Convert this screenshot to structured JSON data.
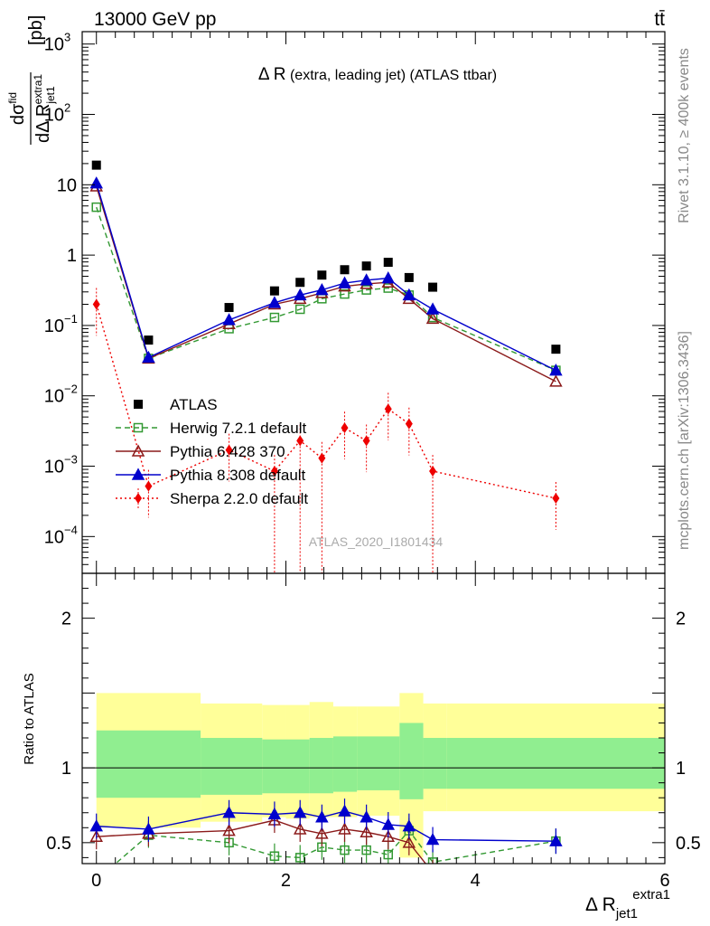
{
  "header": {
    "energy_label": "13000 GeV pp",
    "process_label": "tt̄"
  },
  "side_labels": {
    "rivet": "Rivet 3.1.10, ≥ 400k events",
    "mcplots": "mcplots.cern.ch [arXiv:1306.3436]"
  },
  "watermark": "ATLAS_2020_I1801434",
  "chart_data": [
    {
      "type": "line",
      "title": "Δ R (extra, leading jet) (ATLAS ttbar)",
      "title_main": "Δ R",
      "title_rest": " (extra, leading jet) (ATLAS ttbar)",
      "ylabel_num": "dσ",
      "ylabel_num_sup": "fid",
      "ylabel_den": "dΔ R",
      "ylabel_den_sub": "jet1",
      "ylabel_den_sup": "extra1",
      "ylabel_unit": "[pb]",
      "yscale": "log",
      "xlim": [
        -0.15,
        6.0
      ],
      "ylim": [
        3e-05,
        1500
      ],
      "y_ticks": [
        {
          "value": 0.0001,
          "base": "10",
          "exp": "−4"
        },
        {
          "value": 0.001,
          "base": "10",
          "exp": "−3"
        },
        {
          "value": 0.01,
          "base": "10",
          "exp": "−2"
        },
        {
          "value": 0.1,
          "base": "10",
          "exp": "−1"
        },
        {
          "value": 1,
          "base": "1",
          "exp": ""
        },
        {
          "value": 10,
          "base": "10",
          "exp": ""
        },
        {
          "value": 100,
          "base": "10",
          "exp": "2"
        },
        {
          "value": 1000,
          "base": "10",
          "exp": "3"
        }
      ],
      "legend_position": "lower-left",
      "series": [
        {
          "name": "ATLAS",
          "color": "#000000",
          "marker": "square-filled",
          "line": "none",
          "x": [
            0.0,
            0.55,
            1.4,
            1.88,
            2.15,
            2.38,
            2.62,
            2.85,
            3.08,
            3.3,
            3.55,
            4.85
          ],
          "y": [
            19.0,
            0.062,
            0.18,
            0.31,
            0.41,
            0.52,
            0.62,
            0.7,
            0.79,
            0.48,
            0.35,
            0.046
          ]
        },
        {
          "name": "Herwig 7.2.1 default",
          "color": "#339933",
          "marker": "square-open",
          "line": "dashed",
          "x": [
            0.0,
            0.55,
            1.4,
            1.88,
            2.15,
            2.38,
            2.62,
            2.85,
            3.08,
            3.3,
            3.55,
            4.85
          ],
          "y": [
            4.8,
            0.034,
            0.09,
            0.13,
            0.17,
            0.24,
            0.28,
            0.32,
            0.34,
            0.27,
            0.13,
            0.023
          ]
        },
        {
          "name": "Pythia 6.428 370",
          "color": "#8b1a1a",
          "marker": "triangle-open",
          "line": "solid",
          "x": [
            0.0,
            0.55,
            1.4,
            1.88,
            2.15,
            2.38,
            2.62,
            2.85,
            3.08,
            3.3,
            3.55,
            4.85
          ],
          "y": [
            9.5,
            0.034,
            0.105,
            0.2,
            0.24,
            0.29,
            0.36,
            0.39,
            0.41,
            0.24,
            0.125,
            0.016
          ]
        },
        {
          "name": "Pythia 8.308 default",
          "color": "#0000cc",
          "marker": "triangle-filled",
          "line": "solid",
          "x": [
            0.0,
            0.55,
            1.4,
            1.88,
            2.15,
            2.38,
            2.62,
            2.85,
            3.08,
            3.3,
            3.55,
            4.85
          ],
          "y": [
            10.5,
            0.035,
            0.12,
            0.21,
            0.27,
            0.32,
            0.4,
            0.44,
            0.47,
            0.27,
            0.17,
            0.023
          ]
        },
        {
          "name": "Sherpa 2.2.0 default",
          "color": "#ee0000",
          "marker": "diamond-filled",
          "line": "dotted",
          "x": [
            0.0,
            0.55,
            1.4,
            1.88,
            2.15,
            2.38,
            2.62,
            2.85,
            3.08,
            3.3,
            3.55,
            4.85
          ],
          "y": [
            0.2,
            0.00052,
            0.0017,
            0.00085,
            0.0023,
            0.0013,
            0.0035,
            0.0023,
            0.0065,
            0.004,
            0.00085,
            0.00035
          ]
        }
      ]
    },
    {
      "type": "line",
      "ylabel": "Ratio to ATLAS",
      "xlabel": "Δ R",
      "xlabel_sub": "jet1",
      "xlabel_sup": "extra1",
      "xlim": [
        -0.15,
        6.0
      ],
      "ylim": [
        0.36,
        2.3
      ],
      "x_ticks": [
        0,
        2,
        4,
        6
      ],
      "y_ticks": [
        0.5,
        1,
        2
      ],
      "bands": {
        "edges": [
          0.0,
          1.1,
          1.75,
          2.0,
          2.25,
          2.5,
          2.75,
          3.2,
          3.45,
          3.7,
          6.0
        ],
        "inner_low": [
          0.8,
          0.82,
          0.83,
          0.83,
          0.83,
          0.84,
          0.85,
          0.79,
          0.86,
          0.86
        ],
        "inner_high": [
          1.25,
          1.2,
          1.19,
          1.19,
          1.2,
          1.21,
          1.21,
          1.3,
          1.2,
          1.2
        ],
        "outer_low": [
          0.6,
          0.64,
          0.67,
          0.66,
          0.67,
          0.67,
          0.68,
          0.4,
          0.71,
          0.71
        ],
        "outer_high": [
          1.5,
          1.43,
          1.42,
          1.42,
          1.44,
          1.41,
          1.41,
          1.5,
          1.43,
          1.43
        ],
        "inner_color": "#90ee90",
        "outer_color": "#ffff99"
      },
      "series": [
        {
          "name": "Herwig 7.2.1 default",
          "color": "#339933",
          "marker": "square-open",
          "line": "dashed",
          "x": [
            0.0,
            0.55,
            1.4,
            1.88,
            2.15,
            2.38,
            2.62,
            2.85,
            3.08,
            3.3,
            3.55,
            4.85
          ],
          "y": [
            0.25,
            0.55,
            0.5,
            0.41,
            0.4,
            0.47,
            0.45,
            0.45,
            0.42,
            0.58,
            0.37,
            0.51
          ]
        },
        {
          "name": "Pythia 6.428 370",
          "color": "#8b1a1a",
          "marker": "triangle-open",
          "line": "solid",
          "x": [
            0.0,
            0.55,
            1.4,
            1.88,
            2.15,
            2.38,
            2.62,
            2.85,
            3.08,
            3.3,
            3.55
          ],
          "y": [
            0.54,
            0.56,
            0.58,
            0.65,
            0.59,
            0.56,
            0.59,
            0.57,
            0.54,
            0.5,
            0.3
          ]
        },
        {
          "name": "Pythia 8.308 default",
          "color": "#0000cc",
          "marker": "triangle-filled",
          "line": "solid",
          "x": [
            0.0,
            0.55,
            1.4,
            1.88,
            2.15,
            2.38,
            2.62,
            2.85,
            3.08,
            3.3,
            3.55,
            4.85
          ],
          "y": [
            0.61,
            0.59,
            0.7,
            0.69,
            0.7,
            0.67,
            0.71,
            0.67,
            0.62,
            0.61,
            0.52,
            0.51
          ]
        }
      ]
    }
  ]
}
